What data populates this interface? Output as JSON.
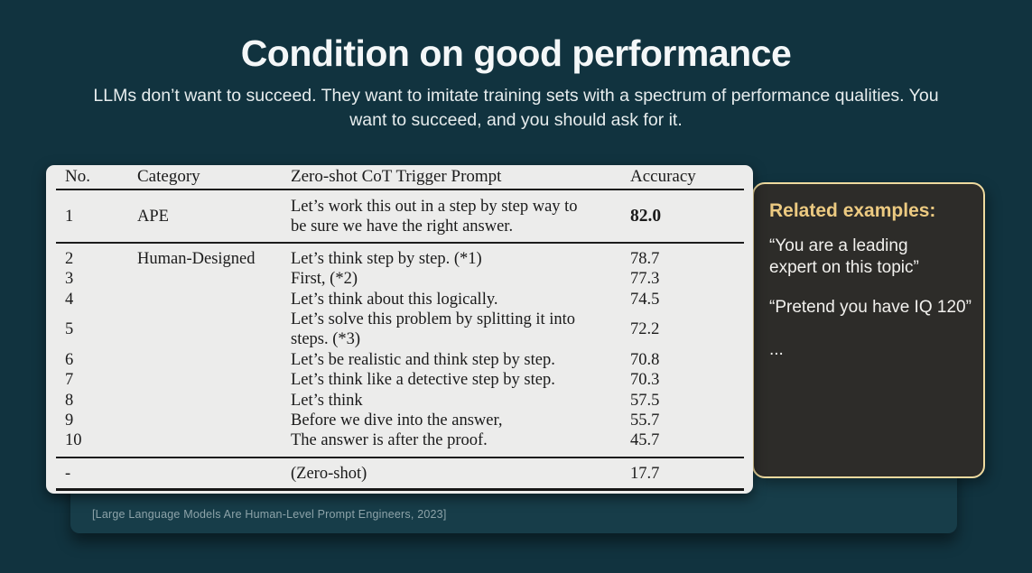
{
  "slide": {
    "title": "Condition on good performance",
    "subtitle": "LLMs don’t want to succeed. They want to imitate training sets with a spectrum of performance qualities. You want to succeed, and you should ask for it.",
    "citation": "[Large Language Models Are Human-Level Prompt Engineers, 2023]"
  },
  "table": {
    "columns": [
      "No.",
      "Category",
      "Zero-shot CoT Trigger Prompt",
      "Accuracy"
    ],
    "rows": [
      {
        "no": "1",
        "category": "APE",
        "prompt": "Let’s work this out in a step by step way to be sure we have the right answer.",
        "accuracy": "82.0"
      },
      {
        "no": "2",
        "category": "Human-Designed",
        "prompt": "Let’s think step by step. (*1)",
        "accuracy": "78.7"
      },
      {
        "no": "3",
        "category": "",
        "prompt": "First, (*2)",
        "accuracy": "77.3"
      },
      {
        "no": "4",
        "category": "",
        "prompt": "Let’s think about this logically.",
        "accuracy": "74.5"
      },
      {
        "no": "5",
        "category": "",
        "prompt": "Let’s solve this problem by splitting it into steps. (*3)",
        "accuracy": "72.2"
      },
      {
        "no": "6",
        "category": "",
        "prompt": "Let’s be realistic and think step by step.",
        "accuracy": "70.8"
      },
      {
        "no": "7",
        "category": "",
        "prompt": "Let’s think like a detective step by step.",
        "accuracy": "70.3"
      },
      {
        "no": "8",
        "category": "",
        "prompt": "Let’s think",
        "accuracy": "57.5"
      },
      {
        "no": "9",
        "category": "",
        "prompt": "Before we dive into the answer,",
        "accuracy": "55.7"
      },
      {
        "no": "10",
        "category": "",
        "prompt": "The answer is after the proof.",
        "accuracy": "45.7"
      },
      {
        "no": "-",
        "category": "",
        "prompt": "(Zero-shot)",
        "accuracy": "17.7"
      }
    ]
  },
  "related": {
    "title": "Related examples:",
    "examples": [
      "“You are a leading expert on this topic”",
      "“Pretend you have IQ 120”",
      "..."
    ]
  },
  "colors": {
    "background": "#11333f",
    "backing_card": "#173d49",
    "panel": "#ececeb",
    "callout_background": "#2d2c29",
    "callout_border": "#eeda9f",
    "accent_gold": "#ecca81"
  }
}
